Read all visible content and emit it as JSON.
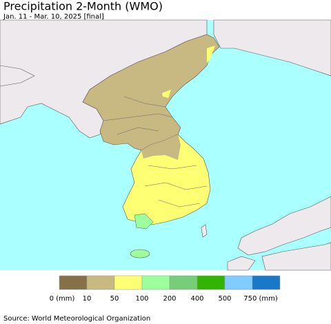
{
  "header": {
    "title": "Precipitation 2-Month (WMO)",
    "subtitle": "Jan. 11 - Mar. 10, 2025 [final]"
  },
  "legend": {
    "items": [
      {
        "label": "0 (mm)",
        "color": "#85704a"
      },
      {
        "label": "10",
        "color": "#c8b882"
      },
      {
        "label": "50",
        "color": "#ffff73"
      },
      {
        "label": "100",
        "color": "#9cff9c"
      },
      {
        "label": "200",
        "color": "#78cd78"
      },
      {
        "label": "400",
        "color": "#32b400"
      },
      {
        "label": "500",
        "color": "#80cbff"
      },
      {
        "label": "750 (mm)",
        "color": "#1a78c8"
      }
    ]
  },
  "footer": {
    "source": "Source: World Meteorological Organization"
  }
}
